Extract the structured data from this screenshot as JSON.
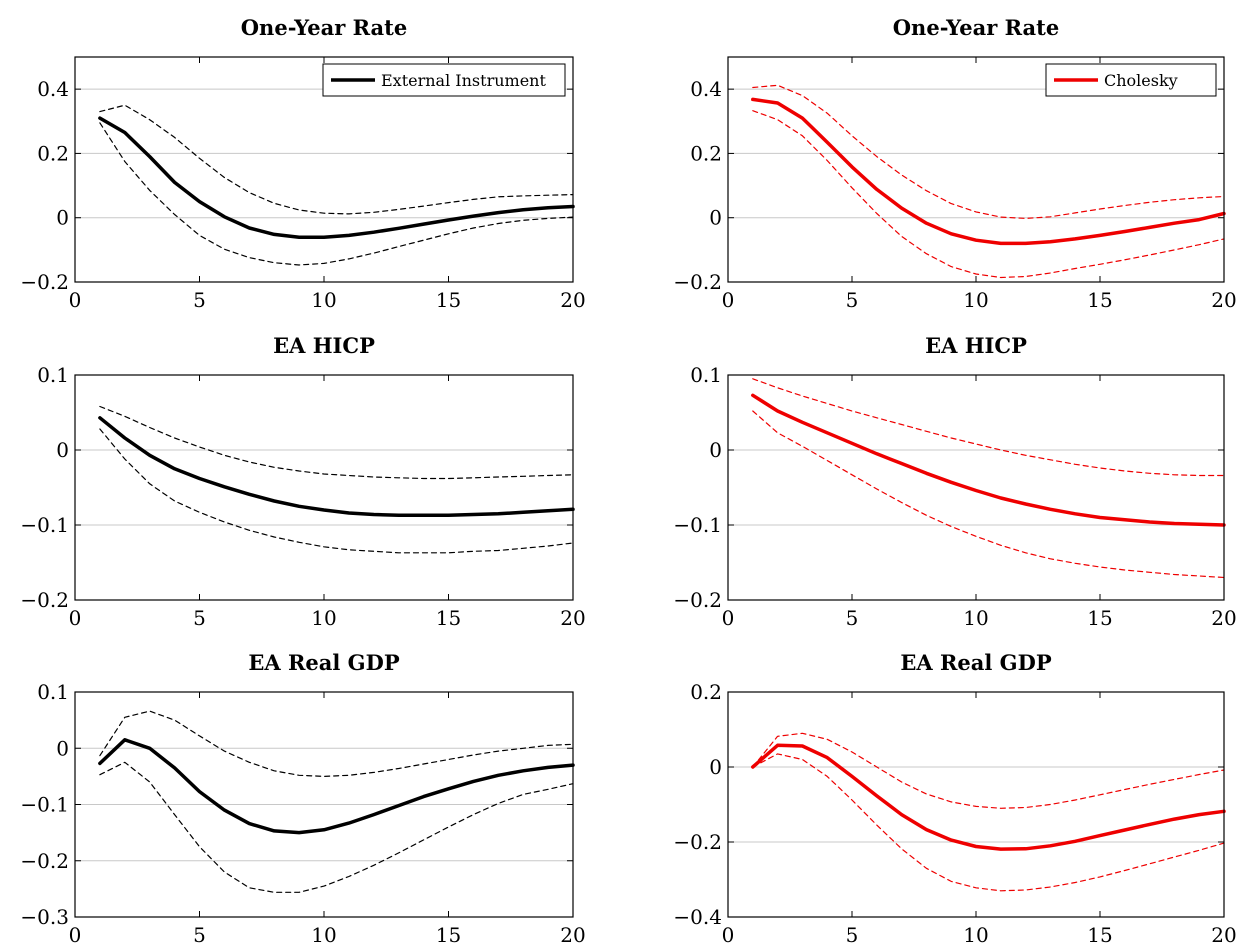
{
  "chart_data": [
    {
      "type": "line",
      "title": "One-Year Rate",
      "x": [
        1,
        2,
        3,
        4,
        5,
        6,
        7,
        8,
        9,
        10,
        11,
        12,
        13,
        14,
        15,
        16,
        17,
        18,
        19,
        20
      ],
      "xlim": [
        0,
        20
      ],
      "ylim": [
        -0.2,
        0.5
      ],
      "xticks": [
        "0",
        "5",
        "10",
        "15",
        "20"
      ],
      "yticks": [
        "−0.2",
        "0",
        "0.2",
        "0.4"
      ],
      "grid": "horizontal",
      "legend": "top-right",
      "color": "#000000",
      "series": [
        {
          "name": "External Instrument",
          "style": "solid",
          "values": [
            0.31,
            0.265,
            0.19,
            0.11,
            0.05,
            0.003,
            -0.032,
            -0.052,
            -0.061,
            -0.061,
            -0.055,
            -0.045,
            -0.033,
            -0.02,
            -0.007,
            0.005,
            0.016,
            0.025,
            0.031,
            0.035
          ]
        },
        {
          "style": "dashed",
          "values": [
            0.33,
            0.35,
            0.305,
            0.25,
            0.185,
            0.125,
            0.078,
            0.045,
            0.024,
            0.014,
            0.012,
            0.017,
            0.026,
            0.036,
            0.047,
            0.057,
            0.065,
            0.068,
            0.07,
            0.072
          ]
        },
        {
          "style": "dashed",
          "values": [
            0.295,
            0.175,
            0.085,
            0.01,
            -0.055,
            -0.098,
            -0.124,
            -0.14,
            -0.147,
            -0.142,
            -0.128,
            -0.11,
            -0.09,
            -0.07,
            -0.05,
            -0.032,
            -0.018,
            -0.008,
            -0.002,
            0.002
          ]
        }
      ]
    },
    {
      "type": "line",
      "title": "One-Year Rate",
      "x": [
        1,
        2,
        3,
        4,
        5,
        6,
        7,
        8,
        9,
        10,
        11,
        12,
        13,
        14,
        15,
        16,
        17,
        18,
        19,
        20
      ],
      "xlim": [
        0,
        20
      ],
      "ylim": [
        -0.2,
        0.5
      ],
      "xticks": [
        "0",
        "5",
        "10",
        "15",
        "20"
      ],
      "yticks": [
        "−0.2",
        "0",
        "0.2",
        "0.4"
      ],
      "grid": "horizontal",
      "legend": "top-right",
      "color": "#ee0000",
      "series": [
        {
          "name": "Cholesky",
          "style": "solid",
          "values": [
            0.368,
            0.357,
            0.31,
            0.235,
            0.158,
            0.088,
            0.03,
            -0.017,
            -0.05,
            -0.07,
            -0.08,
            -0.08,
            -0.075,
            -0.066,
            -0.055,
            -0.043,
            -0.03,
            -0.017,
            -0.006,
            0.013
          ]
        },
        {
          "style": "dashed",
          "values": [
            0.405,
            0.412,
            0.38,
            0.325,
            0.255,
            0.19,
            0.133,
            0.084,
            0.044,
            0.018,
            0.002,
            -0.002,
            0.003,
            0.015,
            0.027,
            0.038,
            0.048,
            0.056,
            0.062,
            0.066
          ]
        },
        {
          "style": "dashed",
          "values": [
            0.333,
            0.305,
            0.255,
            0.178,
            0.093,
            0.013,
            -0.058,
            -0.112,
            -0.152,
            -0.175,
            -0.186,
            -0.183,
            -0.172,
            -0.158,
            -0.145,
            -0.131,
            -0.116,
            -0.1,
            -0.084,
            -0.066
          ]
        }
      ]
    },
    {
      "type": "line",
      "title": "EA HICP",
      "x": [
        1,
        2,
        3,
        4,
        5,
        6,
        7,
        8,
        9,
        10,
        11,
        12,
        13,
        14,
        15,
        16,
        17,
        18,
        19,
        20
      ],
      "xlim": [
        0,
        20
      ],
      "ylim": [
        -0.2,
        0.1
      ],
      "xticks": [
        "0",
        "5",
        "10",
        "15",
        "20"
      ],
      "yticks": [
        "−0.2",
        "−0.1",
        "0",
        "0.1"
      ],
      "grid": "horizontal",
      "color": "#000000",
      "series": [
        {
          "style": "solid",
          "values": [
            0.043,
            0.016,
            -0.007,
            -0.025,
            -0.038,
            -0.049,
            -0.059,
            -0.068,
            -0.075,
            -0.08,
            -0.084,
            -0.086,
            -0.087,
            -0.087,
            -0.087,
            -0.086,
            -0.085,
            -0.083,
            -0.081,
            -0.079
          ]
        },
        {
          "style": "dashed",
          "values": [
            0.058,
            0.045,
            0.03,
            0.016,
            0.004,
            -0.007,
            -0.016,
            -0.023,
            -0.028,
            -0.032,
            -0.034,
            -0.036,
            -0.037,
            -0.038,
            -0.038,
            -0.037,
            -0.036,
            -0.035,
            -0.034,
            -0.033
          ]
        },
        {
          "style": "dashed",
          "values": [
            0.028,
            -0.012,
            -0.045,
            -0.068,
            -0.083,
            -0.096,
            -0.107,
            -0.116,
            -0.123,
            -0.129,
            -0.133,
            -0.135,
            -0.137,
            -0.137,
            -0.137,
            -0.135,
            -0.134,
            -0.131,
            -0.128,
            -0.124
          ]
        }
      ]
    },
    {
      "type": "line",
      "title": "EA HICP",
      "x": [
        1,
        2,
        3,
        4,
        5,
        6,
        7,
        8,
        9,
        10,
        11,
        12,
        13,
        14,
        15,
        16,
        17,
        18,
        19,
        20
      ],
      "xlim": [
        0,
        20
      ],
      "ylim": [
        -0.2,
        0.1
      ],
      "xticks": [
        "0",
        "5",
        "10",
        "15",
        "20"
      ],
      "yticks": [
        "−0.2",
        "−0.1",
        "0",
        "0.1"
      ],
      "grid": "horizontal",
      "color": "#ee0000",
      "series": [
        {
          "style": "solid",
          "values": [
            0.073,
            0.052,
            0.037,
            0.023,
            0.009,
            -0.005,
            -0.018,
            -0.031,
            -0.043,
            -0.054,
            -0.064,
            -0.072,
            -0.079,
            -0.085,
            -0.09,
            -0.093,
            -0.096,
            -0.098,
            -0.099,
            -0.1
          ]
        },
        {
          "style": "dashed",
          "values": [
            0.095,
            0.083,
            0.072,
            0.062,
            0.052,
            0.043,
            0.034,
            0.025,
            0.016,
            0.008,
            0.0,
            -0.007,
            -0.013,
            -0.019,
            -0.024,
            -0.028,
            -0.031,
            -0.033,
            -0.034,
            -0.034
          ]
        },
        {
          "style": "dashed",
          "values": [
            0.052,
            0.023,
            0.005,
            -0.014,
            -0.033,
            -0.052,
            -0.07,
            -0.087,
            -0.102,
            -0.115,
            -0.127,
            -0.137,
            -0.145,
            -0.151,
            -0.156,
            -0.16,
            -0.163,
            -0.166,
            -0.168,
            -0.17
          ]
        }
      ]
    },
    {
      "type": "line",
      "title": "EA Real GDP",
      "x": [
        1,
        2,
        3,
        4,
        5,
        6,
        7,
        8,
        9,
        10,
        11,
        12,
        13,
        14,
        15,
        16,
        17,
        18,
        19,
        20
      ],
      "xlim": [
        0,
        20
      ],
      "ylim": [
        -0.3,
        0.1
      ],
      "xticks": [
        "0",
        "5",
        "10",
        "15",
        "20"
      ],
      "yticks": [
        "−0.3",
        "−0.2",
        "−0.1",
        "0",
        "0.1"
      ],
      "grid": "horizontal",
      "color": "#000000",
      "series": [
        {
          "style": "solid",
          "values": [
            -0.027,
            0.015,
            0.0,
            -0.035,
            -0.077,
            -0.11,
            -0.134,
            -0.147,
            -0.15,
            -0.145,
            -0.133,
            -0.118,
            -0.102,
            -0.086,
            -0.072,
            -0.059,
            -0.048,
            -0.04,
            -0.034,
            -0.03
          ]
        },
        {
          "style": "dashed",
          "values": [
            -0.013,
            0.055,
            0.066,
            0.05,
            0.022,
            -0.005,
            -0.025,
            -0.04,
            -0.048,
            -0.05,
            -0.048,
            -0.043,
            -0.036,
            -0.028,
            -0.02,
            -0.012,
            -0.005,
            0.0,
            0.005,
            0.007
          ]
        },
        {
          "style": "dashed",
          "values": [
            -0.047,
            -0.025,
            -0.06,
            -0.118,
            -0.175,
            -0.22,
            -0.248,
            -0.256,
            -0.256,
            -0.245,
            -0.228,
            -0.208,
            -0.186,
            -0.163,
            -0.14,
            -0.118,
            -0.098,
            -0.082,
            -0.073,
            -0.063
          ]
        }
      ]
    },
    {
      "type": "line",
      "title": "EA Real GDP",
      "x": [
        1,
        2,
        3,
        4,
        5,
        6,
        7,
        8,
        9,
        10,
        11,
        12,
        13,
        14,
        15,
        16,
        17,
        18,
        19,
        20
      ],
      "xlim": [
        0,
        20
      ],
      "ylim": [
        -0.4,
        0.2
      ],
      "xticks": [
        "0",
        "5",
        "10",
        "15",
        "20"
      ],
      "yticks": [
        "−0.4",
        "−0.2",
        "0",
        "0.2"
      ],
      "grid": "horizontal",
      "color": "#ee0000",
      "series": [
        {
          "style": "solid",
          "values": [
            0.0,
            0.058,
            0.056,
            0.025,
            -0.025,
            -0.077,
            -0.127,
            -0.167,
            -0.195,
            -0.212,
            -0.219,
            -0.218,
            -0.21,
            -0.198,
            -0.183,
            -0.168,
            -0.153,
            -0.139,
            -0.127,
            -0.118
          ]
        },
        {
          "style": "dashed",
          "values": [
            0.0,
            0.082,
            0.09,
            0.074,
            0.04,
            0.0,
            -0.04,
            -0.072,
            -0.093,
            -0.105,
            -0.11,
            -0.108,
            -0.1,
            -0.088,
            -0.074,
            -0.06,
            -0.046,
            -0.033,
            -0.02,
            -0.008
          ]
        },
        {
          "style": "dashed",
          "values": [
            0.0,
            0.035,
            0.02,
            -0.025,
            -0.088,
            -0.155,
            -0.218,
            -0.27,
            -0.305,
            -0.322,
            -0.33,
            -0.328,
            -0.32,
            -0.308,
            -0.293,
            -0.276,
            -0.258,
            -0.24,
            -0.222,
            -0.203
          ]
        }
      ]
    }
  ]
}
